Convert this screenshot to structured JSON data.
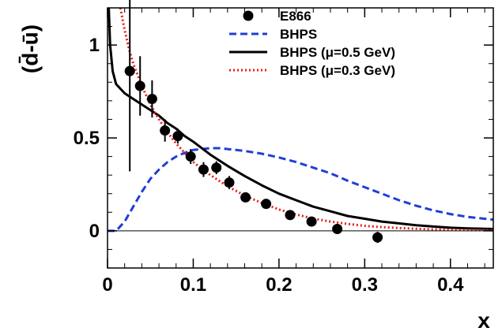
{
  "chart_data": {
    "type": "scatter",
    "xlabel": "x",
    "ylabel": "(d̄-ū)",
    "xlim": [
      0,
      0.45
    ],
    "ylim": [
      -0.2,
      1.2
    ],
    "x_ticks": [
      "0",
      "0.1",
      "0.2",
      "0.3",
      "0.4"
    ],
    "y_ticks": [
      "0",
      "0.5",
      "1"
    ],
    "legend_position": "top-right",
    "colors": {
      "data": "#000000",
      "bhps": "#1f3fd6",
      "bhps_05": "#000000",
      "bhps_03": "#e0201a"
    },
    "series": [
      {
        "name": "E866",
        "kind": "points",
        "x": [
          0.026,
          0.038,
          0.052,
          0.067,
          0.082,
          0.097,
          0.112,
          0.127,
          0.142,
          0.161,
          0.185,
          0.213,
          0.238,
          0.268,
          0.315
        ],
        "y": [
          0.86,
          0.78,
          0.71,
          0.54,
          0.51,
          0.4,
          0.33,
          0.34,
          0.26,
          0.18,
          0.145,
          0.085,
          0.05,
          0.01,
          -0.035
        ],
        "err": [
          0.54,
          0.16,
          0.1,
          0.06,
          0.04,
          0.04,
          0.04,
          0.035,
          0.035,
          0.025,
          0.02,
          0.02,
          0.02,
          0.02,
          0.03
        ]
      },
      {
        "name": "BHPS",
        "kind": "dashed",
        "x": [
          0,
          0.01,
          0.02,
          0.03,
          0.04,
          0.05,
          0.06,
          0.07,
          0.08,
          0.09,
          0.1,
          0.11,
          0.12,
          0.13,
          0.14,
          0.16,
          0.18,
          0.2,
          0.22,
          0.24,
          0.26,
          0.28,
          0.3,
          0.32,
          0.34,
          0.36,
          0.38,
          0.4,
          0.42,
          0.45
        ],
        "y": [
          0,
          0.0,
          0.05,
          0.13,
          0.21,
          0.28,
          0.33,
          0.37,
          0.4,
          0.42,
          0.435,
          0.44,
          0.445,
          0.445,
          0.44,
          0.43,
          0.415,
          0.395,
          0.37,
          0.34,
          0.31,
          0.27,
          0.235,
          0.2,
          0.165,
          0.135,
          0.11,
          0.09,
          0.075,
          0.06
        ]
      },
      {
        "name": "BHPS (μ=0.5 GeV)",
        "kind": "solid",
        "x": [
          0.0015,
          0.003,
          0.006,
          0.01,
          0.02,
          0.03,
          0.04,
          0.05,
          0.06,
          0.07,
          0.08,
          0.09,
          0.1,
          0.12,
          0.14,
          0.16,
          0.18,
          0.2,
          0.22,
          0.24,
          0.26,
          0.28,
          0.3,
          0.32,
          0.34,
          0.36,
          0.38,
          0.4,
          0.42,
          0.45
        ],
        "y": [
          1.2,
          1.0,
          0.86,
          0.79,
          0.74,
          0.71,
          0.68,
          0.65,
          0.62,
          0.58,
          0.55,
          0.51,
          0.48,
          0.41,
          0.35,
          0.295,
          0.245,
          0.2,
          0.165,
          0.13,
          0.105,
          0.08,
          0.065,
          0.05,
          0.04,
          0.03,
          0.023,
          0.017,
          0.013,
          0.01
        ]
      },
      {
        "name": "BHPS (μ=0.3 GeV)",
        "kind": "dotted",
        "x": [
          0.015,
          0.02,
          0.025,
          0.03,
          0.04,
          0.05,
          0.06,
          0.07,
          0.08,
          0.09,
          0.1,
          0.12,
          0.14,
          0.16,
          0.18,
          0.2,
          0.22,
          0.24,
          0.26,
          0.28,
          0.3,
          0.32,
          0.34,
          0.36,
          0.38,
          0.4,
          0.42,
          0.45
        ],
        "y": [
          1.2,
          1.08,
          0.98,
          0.9,
          0.78,
          0.68,
          0.6,
          0.53,
          0.47,
          0.42,
          0.37,
          0.3,
          0.24,
          0.19,
          0.15,
          0.115,
          0.088,
          0.066,
          0.05,
          0.037,
          0.027,
          0.02,
          0.015,
          0.011,
          0.008,
          0.006,
          0.004,
          0.003
        ]
      }
    ]
  }
}
